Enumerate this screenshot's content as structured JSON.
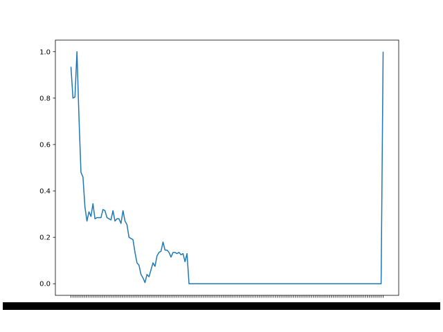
{
  "chart_data": {
    "type": "line",
    "title": "",
    "xlabel": "",
    "ylabel": "",
    "ylim": [
      -0.05,
      1.05
    ],
    "yticks": [
      0.0,
      0.2,
      0.4,
      0.6,
      0.8,
      1.0
    ],
    "ytick_labels": [
      "0.0",
      "0.2",
      "0.4",
      "0.6",
      "0.8",
      "1.0"
    ],
    "grid": false,
    "legend": "none",
    "line_color": "#1f77b4",
    "x_tick_count": 157,
    "xtick_labels_legible": false,
    "series": [
      {
        "values": [
          0.935,
          0.8,
          0.805,
          1.0,
          0.72,
          0.48,
          0.46,
          0.33,
          0.27,
          0.31,
          0.29,
          0.345,
          0.28,
          0.285,
          0.285,
          0.285,
          0.32,
          0.315,
          0.285,
          0.28,
          0.275,
          0.315,
          0.27,
          0.28,
          0.28,
          0.26,
          0.315,
          0.27,
          0.255,
          0.2,
          0.195,
          0.19,
          0.135,
          0.09,
          0.08,
          0.04,
          0.025,
          0.005,
          0.04,
          0.03,
          0.06,
          0.09,
          0.075,
          0.12,
          0.135,
          0.14,
          0.18,
          0.145,
          0.145,
          0.135,
          0.115,
          0.135,
          0.135,
          0.13,
          0.135,
          0.125,
          0.13,
          0.095,
          0.13,
          0.0,
          0.0,
          0.0,
          0.0,
          0.0,
          0.0,
          0.0,
          0.0,
          0.0,
          0.0,
          0.0,
          0.0,
          0.0,
          0.0,
          0.0,
          0.0,
          0.0,
          0.0,
          0.0,
          0.0,
          0.0,
          0.0,
          0.0,
          0.0,
          0.0,
          0.0,
          0.0,
          0.0,
          0.0,
          0.0,
          0.0,
          0.0,
          0.0,
          0.0,
          0.0,
          0.0,
          0.0,
          0.0,
          0.0,
          0.0,
          0.0,
          0.0,
          0.0,
          0.0,
          0.0,
          0.0,
          0.0,
          0.0,
          0.0,
          0.0,
          0.0,
          0.0,
          0.0,
          0.0,
          0.0,
          0.0,
          0.0,
          0.0,
          0.0,
          0.0,
          0.0,
          0.0,
          0.0,
          0.0,
          0.0,
          0.0,
          0.0,
          0.0,
          0.0,
          0.0,
          0.0,
          0.0,
          0.0,
          0.0,
          0.0,
          0.0,
          0.0,
          0.0,
          0.0,
          0.0,
          0.0,
          0.0,
          0.0,
          0.0,
          0.0,
          0.0,
          0.0,
          0.0,
          0.0,
          0.0,
          0.0,
          0.0,
          0.0,
          0.0,
          0.0,
          0.0,
          0.0,
          1.0
        ]
      }
    ]
  }
}
